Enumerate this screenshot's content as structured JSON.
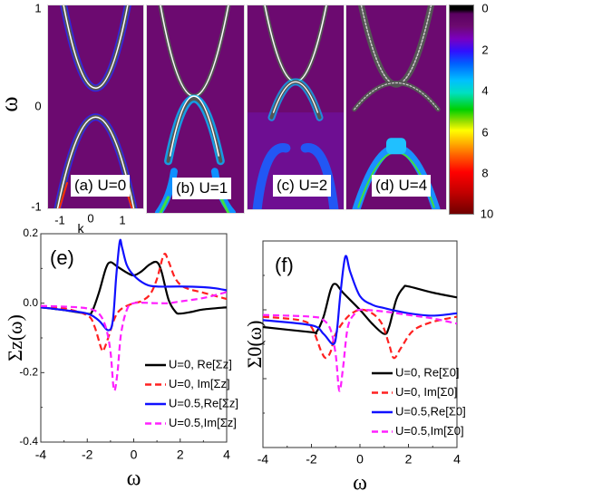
{
  "top": {
    "ylabel": "ω",
    "yticks": [
      "1",
      "0",
      "-1"
    ],
    "xlabel": "k",
    "xticks": [
      "-1",
      "0",
      "1"
    ],
    "panels": [
      "(a) U=0",
      "(b) U=1",
      "(c) U=2",
      "(d) U=4"
    ],
    "colorbar_ticks": [
      "0",
      "2",
      "4",
      "6",
      "8",
      "10"
    ]
  },
  "chart_data": [
    {
      "type": "line",
      "panel_label": "(e)",
      "xlabel": "ω",
      "ylabel": "Σz(ω)",
      "ylabel_main": "Σ",
      "ylabel_sub": "z",
      "ylabel_tail": "(ω)",
      "xlim": [
        -4,
        4
      ],
      "ylim": [
        -0.4,
        0.2
      ],
      "xticks": [
        "-4",
        "-2",
        "0",
        "2",
        "4"
      ],
      "yticks": [
        "0.2",
        "0.0",
        "-0.2",
        "-0.4"
      ],
      "legend_position": "bottom-right",
      "series": [
        {
          "name": "U=0,  Re[Σz]",
          "color": "#000000",
          "dash": false,
          "x": [
            -4,
            -3,
            -2,
            -1.8,
            -1.5,
            -1.2,
            -1,
            -0.7,
            -0.3,
            0,
            0.3,
            0.7,
            1,
            1.2,
            1.5,
            1.8,
            2,
            2.5,
            3,
            4
          ],
          "y": [
            -0.012,
            -0.02,
            -0.03,
            -0.025,
            0.03,
            0.1,
            0.118,
            0.105,
            0.088,
            0.08,
            0.09,
            0.112,
            0.118,
            0.09,
            0.01,
            -0.025,
            -0.03,
            -0.025,
            -0.018,
            -0.012
          ]
        },
        {
          "name": "U=0,  Im[Σz]",
          "color": "#ff2020",
          "dash": true,
          "x": [
            -4,
            -3,
            -2,
            -1.7,
            -1.4,
            -1.3,
            -1.1,
            -0.8,
            -0.5,
            0,
            0.3,
            0.7,
            1,
            1.3,
            1.5,
            1.8,
            2.2,
            3,
            4
          ],
          "y": [
            -0.01,
            -0.015,
            -0.035,
            -0.065,
            -0.13,
            -0.135,
            -0.1,
            -0.04,
            -0.015,
            0,
            0.005,
            0.025,
            0.07,
            0.14,
            0.12,
            0.07,
            0.045,
            0.03,
            0.012
          ]
        },
        {
          "name": "U=0.5,Re[Σz]",
          "color": "#1010ff",
          "dash": false,
          "x": [
            -4,
            -3,
            -2,
            -1.5,
            -1.1,
            -0.9,
            -0.75,
            -0.6,
            -0.5,
            -0.3,
            0,
            0.5,
            1,
            2,
            3,
            3.5,
            4
          ],
          "y": [
            -0.012,
            -0.02,
            -0.03,
            -0.05,
            -0.078,
            -0.05,
            0.08,
            0.178,
            0.16,
            0.11,
            0.08,
            0.055,
            0.048,
            0.048,
            0.046,
            0.043,
            0.037
          ]
        },
        {
          "name": "U=0.5,Im[Σz]",
          "color": "#ff20ff",
          "dash": true,
          "x": [
            -4,
            -3,
            -2,
            -1.5,
            -1.2,
            -1,
            -0.85,
            -0.7,
            -0.55,
            -0.3,
            0,
            1,
            1.5,
            2,
            3,
            4
          ],
          "y": [
            -0.008,
            -0.01,
            -0.015,
            -0.03,
            -0.07,
            -0.14,
            -0.25,
            -0.2,
            -0.09,
            -0.02,
            0,
            0,
            0,
            0.005,
            0.015,
            0.032
          ]
        }
      ]
    },
    {
      "type": "line",
      "panel_label": "(f)",
      "xlabel": "ω",
      "ylabel": "Σ0(ω)",
      "ylabel_main": "Σ",
      "ylabel_sub": "0",
      "ylabel_tail": "(ω)",
      "xlim": [
        -4,
        4
      ],
      "ylim": [
        -0.4,
        0.2
      ],
      "xticks": [
        "-4",
        "-2",
        "0",
        "2",
        "4"
      ],
      "yticks": [],
      "legend_position": "bottom-right",
      "series": [
        {
          "name": "U=0,  Re[Σ0]",
          "color": "#000000",
          "dash": false,
          "x": [
            -4,
            -2,
            -1.8,
            -1.5,
            -1.2,
            -1,
            -0.7,
            0,
            0.5,
            1,
            1.2,
            1.5,
            1.8,
            2,
            3,
            4
          ],
          "y": [
            -0.05,
            -0.065,
            -0.065,
            -0.02,
            0.06,
            0.075,
            0.05,
            0,
            -0.04,
            -0.07,
            -0.05,
            0.03,
            0.065,
            0.068,
            0.05,
            0.036
          ]
        },
        {
          "name": "U=0,  Im[Σ0]",
          "color": "#ff2020",
          "dash": true,
          "x": [
            -4,
            -2.5,
            -2,
            -1.6,
            -1.4,
            -1.2,
            -1,
            -0.5,
            0,
            0.5,
            0.9,
            1.2,
            1.4,
            1.7,
            2.2,
            3,
            4
          ],
          "y": [
            -0.02,
            -0.03,
            -0.05,
            -0.12,
            -0.14,
            -0.12,
            -0.07,
            -0.02,
            0,
            -0.01,
            -0.04,
            -0.1,
            -0.14,
            -0.11,
            -0.06,
            -0.035,
            -0.02
          ]
        },
        {
          "name": "U=0.5,Re[Σ0]",
          "color": "#1010ff",
          "dash": false,
          "x": [
            -4,
            -2,
            -1.5,
            -1.1,
            -0.95,
            -0.8,
            -0.6,
            -0.4,
            0,
            0.5,
            1,
            2,
            3,
            4
          ],
          "y": [
            -0.03,
            -0.045,
            -0.07,
            -0.1,
            -0.06,
            0.05,
            0.155,
            0.11,
            0.04,
            0.015,
            0.005,
            -0.01,
            -0.017,
            -0.01
          ]
        },
        {
          "name": "U=0.5,Im[Σ0]",
          "color": "#ff20ff",
          "dash": true,
          "x": [
            -4,
            -2,
            -1.5,
            -1.2,
            -1,
            -0.85,
            -0.7,
            -0.5,
            -0.2,
            0,
            1,
            2,
            3,
            4
          ],
          "y": [
            -0.015,
            -0.02,
            -0.03,
            -0.06,
            -0.13,
            -0.235,
            -0.17,
            -0.05,
            -0.01,
            0,
            -0.005,
            -0.015,
            -0.025,
            -0.04
          ]
        }
      ]
    }
  ]
}
